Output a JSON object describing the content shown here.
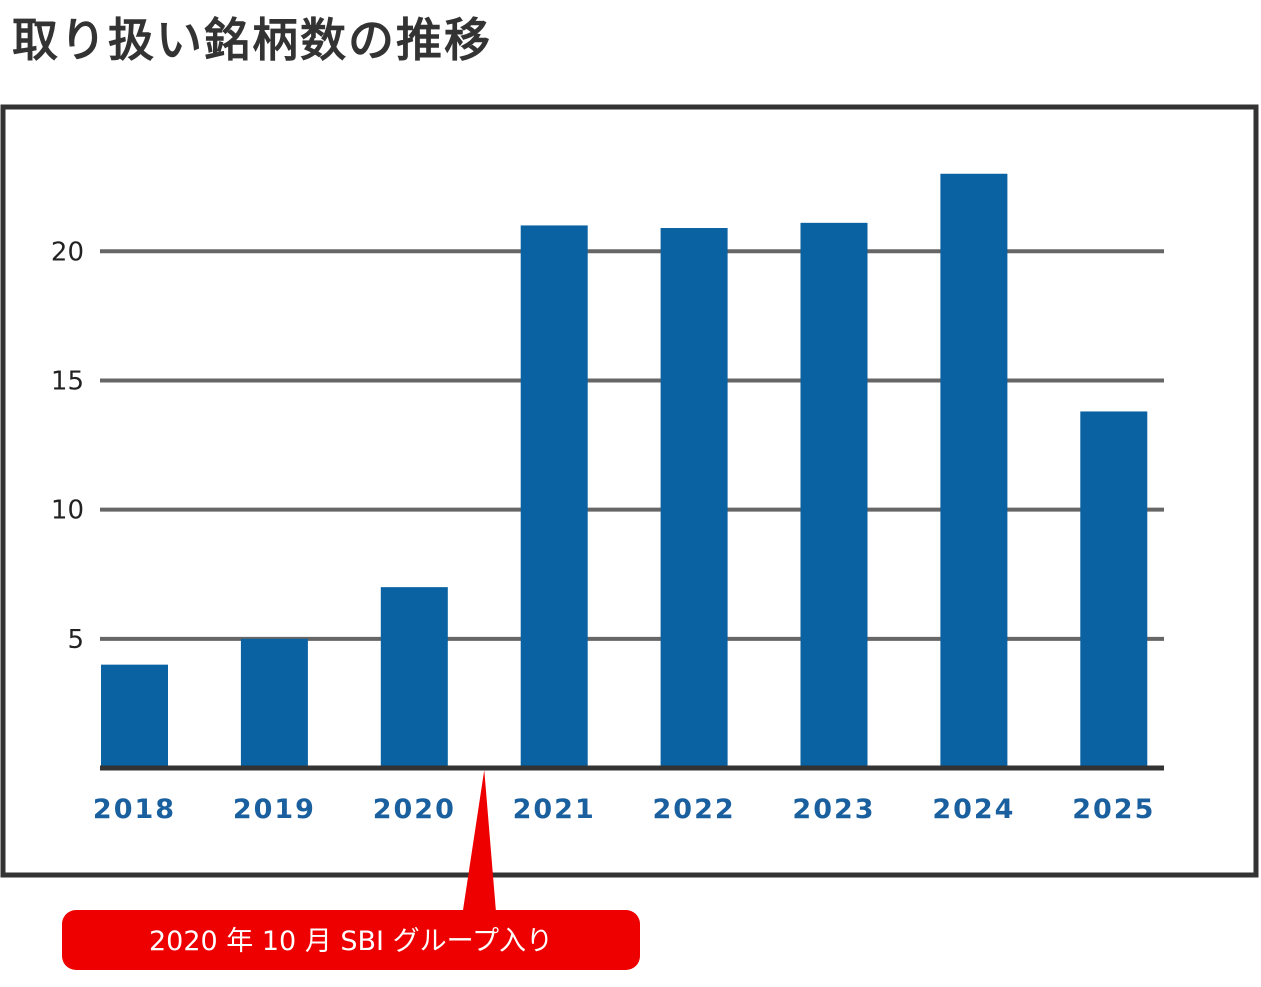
{
  "colors": {
    "bar": "#0a62a2",
    "grid": "#666666",
    "axis": "#333333",
    "frame": "#333333",
    "xtick": "#1a5f9e",
    "callout": "#ee0000"
  },
  "callout": {
    "text": "2020 年 10 月 SBI グループ入り",
    "between": [
      "2020",
      "2021"
    ]
  },
  "chart_data": {
    "type": "bar",
    "title": "取り扱い銘柄数の推移",
    "categories": [
      "2018",
      "2019",
      "2020",
      "2021",
      "2022",
      "2023",
      "2024",
      "2025"
    ],
    "values": [
      4,
      5,
      7,
      21,
      20.9,
      21.1,
      23,
      13.8
    ],
    "yticks": [
      5,
      10,
      15,
      20
    ],
    "ylim": [
      0,
      24.5
    ],
    "grid": true,
    "legend": "none"
  }
}
